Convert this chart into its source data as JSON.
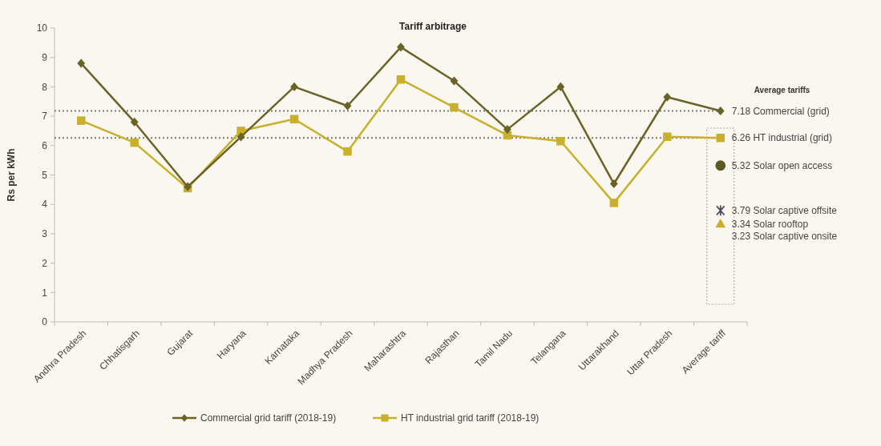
{
  "chart_data": {
    "type": "line",
    "title": "Tariff arbitrage",
    "ylabel": "Rs per kWh",
    "categories": [
      "Andhra Pradesh",
      "Chhatisgarh",
      "Gujarat",
      "Haryana",
      "Karnataka",
      "Madhya Pradesh",
      "Maharashtra",
      "Rajasthan",
      "Tamil Nadu",
      "Telangana",
      "Uttarakhand",
      "Uttar Pradesh",
      "Average tariff"
    ],
    "series": [
      {
        "name": "Commercial grid tariff (2018-19)",
        "color": "#6b6326",
        "marker": "diamond",
        "values": [
          8.8,
          6.8,
          4.6,
          6.3,
          8.0,
          7.35,
          9.35,
          8.2,
          6.55,
          8.0,
          4.7,
          7.65,
          7.18
        ]
      },
      {
        "name": "HT industrial grid tariff (2018-19)",
        "color": "#c8b02c",
        "marker": "square",
        "values": [
          6.85,
          6.1,
          4.55,
          6.5,
          6.9,
          5.8,
          8.25,
          7.3,
          6.35,
          6.15,
          4.05,
          6.3,
          6.26
        ]
      },
      {
        "type": "scatter",
        "color": "#5e5a22",
        "marker": "circle",
        "x": [
          "Average tariff"
        ],
        "values": [
          5.32
        ]
      },
      {
        "type": "scatter",
        "color": "#4a4a66",
        "marker": "cross",
        "x": [
          "Average tariff"
        ],
        "values": [
          3.79
        ]
      },
      {
        "type": "scatter",
        "color": "#c8b02c",
        "marker": "triangle",
        "x": [
          "Average tariff"
        ],
        "values": [
          3.34
        ]
      }
    ],
    "ylim": [
      0,
      10
    ],
    "yticks": [
      0,
      1,
      2,
      3,
      4,
      5,
      6,
      7,
      8,
      9,
      10
    ],
    "grid": false,
    "legend": "bottom",
    "ref_lines": [
      {
        "axis": "y",
        "value": 7.18,
        "color": "#7a7a7a",
        "line_style": "dotted"
      },
      {
        "axis": "y",
        "value": 6.26,
        "color": "#7a7a7a",
        "line_style": "dotted"
      }
    ],
    "annotations": [
      "Average tariffs",
      {
        "text": "7.18 Commercial (grid)",
        "x": "Average tariff",
        "y": 7.18
      },
      {
        "text": "6.26 HT industrial (grid)",
        "x": "Average tariff",
        "y": 6.26
      },
      {
        "text": "5.32 Solar open access",
        "x": "Average tariff",
        "y": 5.32
      },
      {
        "text": "3.79 Solar captive offsite",
        "x": "Average tariff",
        "y": 3.79
      },
      {
        "text": "3.34 Solar rooftop",
        "x": "Average tariff",
        "y": 3.34
      },
      {
        "text": "3.23 Solar captive onsite",
        "x": "Average tariff",
        "y": 3.23
      }
    ]
  }
}
